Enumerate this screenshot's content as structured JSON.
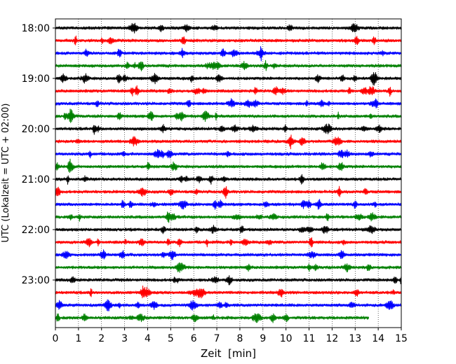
{
  "chart_data": {
    "type": "line",
    "xlabel": "Zeit  [min]",
    "ylabel": "UTC (Lokalzeit = UTC + 02:00)",
    "xlim": [
      0,
      15
    ],
    "xticks": [
      0,
      1,
      2,
      3,
      4,
      5,
      6,
      7,
      8,
      9,
      10,
      11,
      12,
      13,
      14,
      15
    ],
    "grid": "vertical dotted",
    "row_interval_min": 15,
    "start_time": "18:00",
    "hour_tick_labels": [
      "18:00",
      "19:00",
      "20:00",
      "21:00",
      "22:00",
      "23:00"
    ],
    "color_cycle": [
      "#000000",
      "#ff0000",
      "#0000ff",
      "#008000"
    ],
    "rows": [
      {
        "time": "18:00",
        "color": "#000000",
        "x_end": 15
      },
      {
        "time": "18:15",
        "color": "#ff0000",
        "x_end": 15
      },
      {
        "time": "18:30",
        "color": "#0000ff",
        "x_end": 15
      },
      {
        "time": "18:45",
        "color": "#008000",
        "x_end": 15
      },
      {
        "time": "19:00",
        "color": "#000000",
        "x_end": 15
      },
      {
        "time": "19:15",
        "color": "#ff0000",
        "x_end": 15
      },
      {
        "time": "19:30",
        "color": "#0000ff",
        "x_end": 15
      },
      {
        "time": "19:45",
        "color": "#008000",
        "x_end": 15
      },
      {
        "time": "20:00",
        "color": "#000000",
        "x_end": 15
      },
      {
        "time": "20:15",
        "color": "#ff0000",
        "x_end": 15
      },
      {
        "time": "20:30",
        "color": "#0000ff",
        "x_end": 15
      },
      {
        "time": "20:45",
        "color": "#008000",
        "x_end": 15
      },
      {
        "time": "21:00",
        "color": "#000000",
        "x_end": 15
      },
      {
        "time": "21:15",
        "color": "#ff0000",
        "x_end": 15
      },
      {
        "time": "21:30",
        "color": "#0000ff",
        "x_end": 15
      },
      {
        "time": "21:45",
        "color": "#008000",
        "x_end": 15
      },
      {
        "time": "22:00",
        "color": "#000000",
        "x_end": 15
      },
      {
        "time": "22:15",
        "color": "#ff0000",
        "x_end": 15
      },
      {
        "time": "22:30",
        "color": "#0000ff",
        "x_end": 15
      },
      {
        "time": "22:45",
        "color": "#008000",
        "x_end": 15
      },
      {
        "time": "23:00",
        "color": "#000000",
        "x_end": 15
      },
      {
        "time": "23:15",
        "color": "#ff0000",
        "x_end": 15
      },
      {
        "time": "23:30",
        "color": "#0000ff",
        "x_end": 15
      },
      {
        "time": "23:45",
        "color": "#008000",
        "x_end": 13.6
      }
    ]
  }
}
